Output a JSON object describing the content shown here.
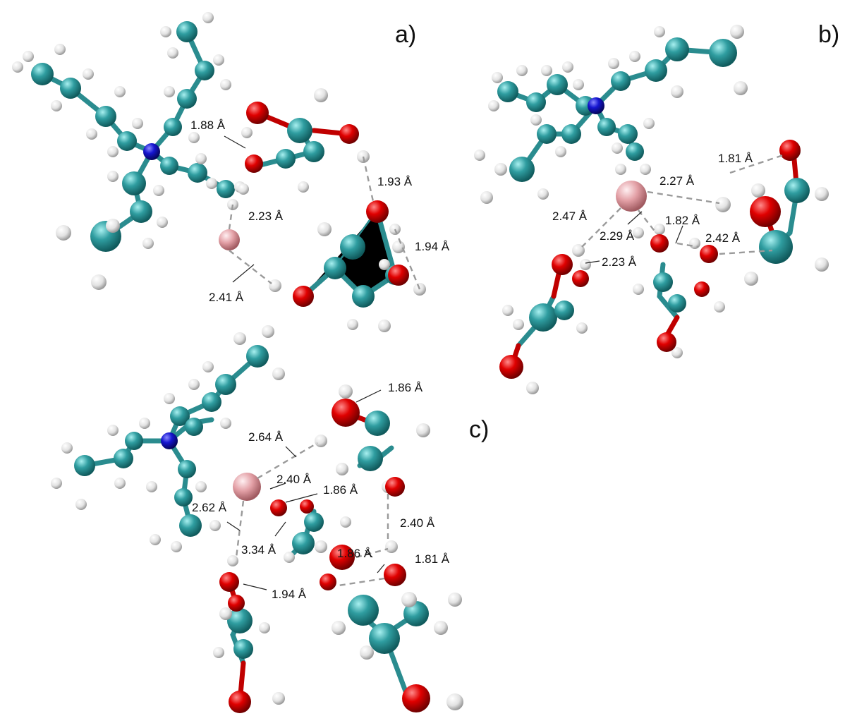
{
  "panels": [
    {
      "label": "a)"
    },
    {
      "label": "b)"
    },
    {
      "label": "c)"
    }
  ],
  "colors": {
    "carbon": "#2f9da0",
    "hydrogen": "#e8e8e8",
    "oxygen": "#d40000",
    "nitrogen": "#1010c8",
    "ion": "#e3a0a6",
    "hbond": "#9a9a9a"
  },
  "distances_a": [
    "1.88 Å",
    "1.93 Å",
    "2.23 Å",
    "1.94 Å",
    "2.41 Å"
  ],
  "distances_b": [
    "1.81 Å",
    "2.27 Å",
    "2.47 Å",
    "1.82 Å",
    "2.29 Å",
    "2.42 Å",
    "2.23 Å"
  ],
  "distances_c": [
    "1.86 Å",
    "2.64 Å",
    "2.40 Å",
    "1.86 Å",
    "2.62 Å",
    "2.40 Å",
    "1.86 Å",
    "3.34 Å",
    "1.81 Å",
    "1.94 Å"
  ]
}
